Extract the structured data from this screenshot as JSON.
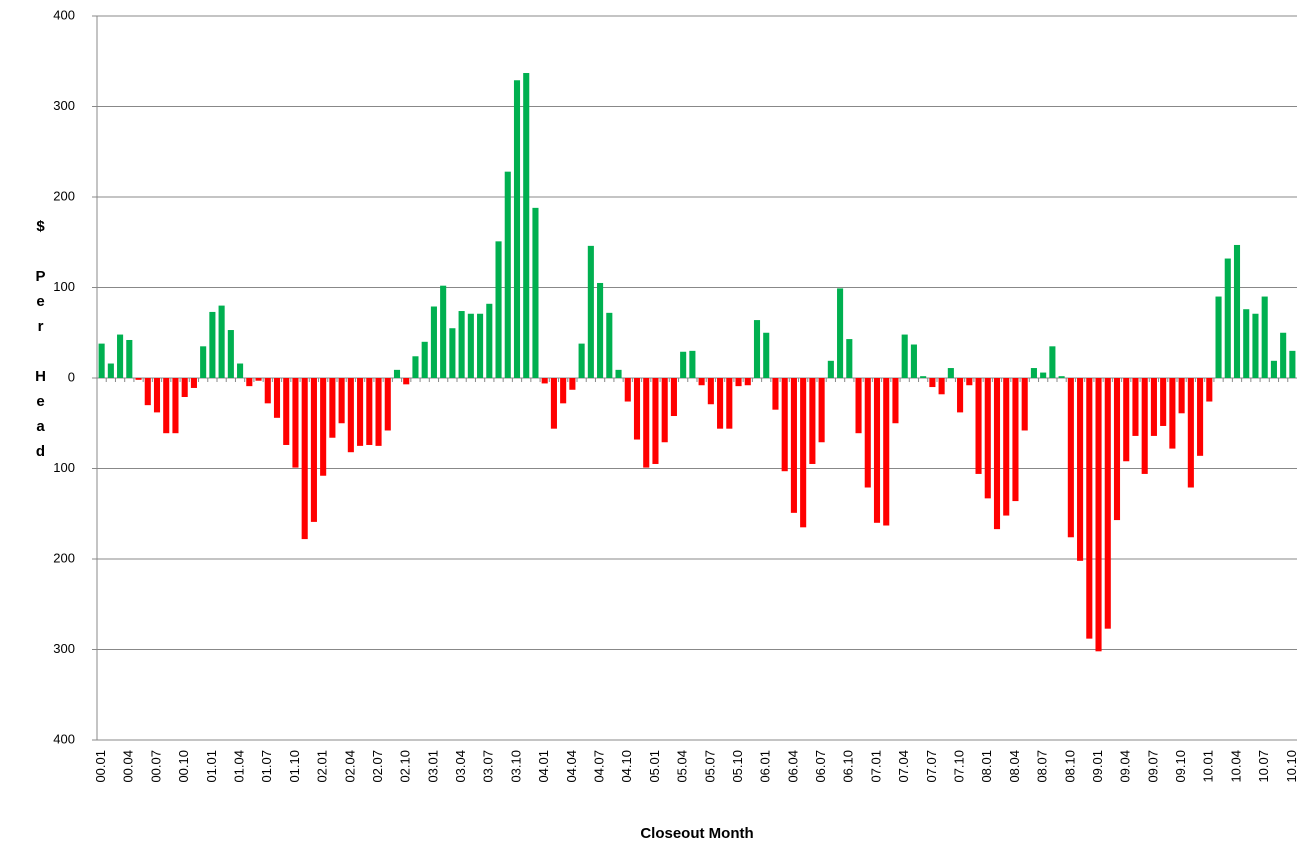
{
  "chart_data": {
    "type": "bar",
    "x_label": "Closeout Month",
    "y_label": "$ Per Head",
    "categories": [
      "00.01",
      null,
      null,
      "00.04",
      null,
      null,
      "00.07",
      null,
      null,
      "00.10",
      null,
      null,
      "01.01",
      null,
      null,
      "01.04",
      null,
      null,
      "01.07",
      null,
      null,
      "01.10",
      null,
      null,
      "02.01",
      null,
      null,
      "02.04",
      null,
      null,
      "02.07",
      null,
      null,
      "02.10",
      null,
      null,
      "03.01",
      null,
      null,
      "03.04",
      null,
      null,
      "03.07",
      null,
      null,
      "03.10",
      null,
      null,
      "04.01",
      null,
      null,
      "04.04",
      null,
      null,
      "04.07",
      null,
      null,
      "04.10",
      null,
      null,
      "05.01",
      null,
      null,
      "05.04",
      null,
      null,
      "05.07",
      null,
      null,
      "05.10",
      null,
      null,
      "06.01",
      null,
      null,
      "06.04",
      null,
      null,
      "06.07",
      null,
      null,
      "06.10",
      null,
      null,
      "07.01",
      null,
      null,
      "07.04",
      null,
      null,
      "07.07",
      null,
      null,
      "07.10",
      null,
      null,
      "08.01",
      null,
      null,
      "08.04",
      null,
      null,
      "08.07",
      null,
      null,
      "08.10",
      null,
      null,
      "09.01",
      null,
      null,
      "09.04",
      null,
      null,
      "09.07",
      null,
      null,
      "09.10",
      null,
      null,
      "10.01",
      null,
      null,
      "10.04",
      null,
      null,
      "10.07",
      null,
      null,
      "10.10"
    ],
    "values": [
      38,
      16,
      48,
      42,
      -2,
      -30,
      -38,
      -61,
      -61,
      -21,
      -11,
      35,
      73,
      80,
      53,
      16,
      -9,
      -3,
      -28,
      -44,
      -74,
      -99,
      -178,
      -159,
      -108,
      -66,
      -50,
      -82,
      -75,
      -74,
      -75,
      -58,
      9,
      -7,
      24,
      40,
      79,
      102,
      55,
      74,
      71,
      71,
      82,
      151,
      228,
      329,
      337,
      188,
      -6,
      -56,
      -28,
      -13,
      38,
      146,
      105,
      72,
      9,
      -26,
      -68,
      -99,
      -95,
      -71,
      -42,
      29,
      30,
      -8,
      -29,
      -56,
      -56,
      -9,
      -8,
      64,
      50,
      -35,
      -103,
      -149,
      -165,
      -95,
      -71,
      19,
      99,
      43,
      -61,
      -121,
      -160,
      -163,
      -50,
      48,
      37,
      2,
      -10,
      -18,
      11,
      -38,
      -8,
      -106,
      -133,
      -167,
      -152,
      -136,
      -58,
      11,
      6,
      35,
      2,
      -176,
      -202,
      -288,
      -302,
      -277,
      -157,
      -92,
      -64,
      -106,
      -64,
      -53,
      -78,
      -39,
      -121,
      -86,
      -26,
      90,
      132,
      147,
      76,
      71,
      90,
      19,
      50,
      30
    ],
    "positive_color": "#00b050",
    "negative_color": "#ff0000",
    "negative_tick_color": "#ff0000",
    "ylim": [
      -400,
      400
    ],
    "yticks": [
      {
        "value": -400,
        "label": "400"
      },
      {
        "value": -300,
        "label": "300"
      },
      {
        "value": -200,
        "label": "200"
      },
      {
        "value": -100,
        "label": "100"
      },
      0,
      100,
      200,
      300,
      400
    ],
    "grid": true
  }
}
